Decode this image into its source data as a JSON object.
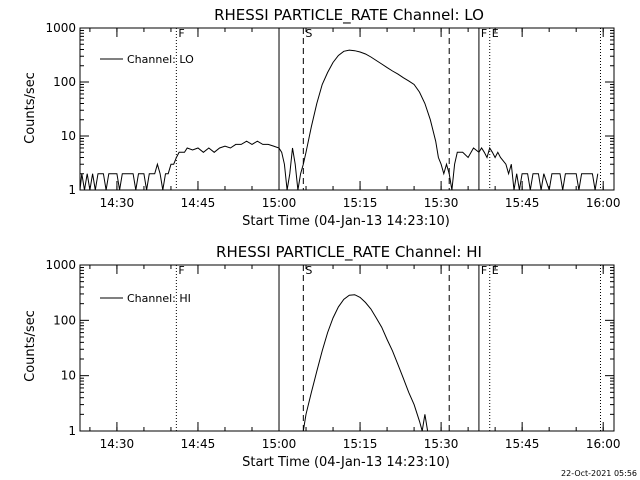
{
  "footer_timestamp": "22-Oct-2021 05:56",
  "chart_data": [
    {
      "type": "line",
      "title": "RHESSI PARTICLE_RATE Channel: LO",
      "xlabel": "Start Time (04-Jan-13 14:23:10)",
      "ylabel": "Counts/sec",
      "y_scale": "log",
      "xlim": [
        "14:23:10",
        "16:02:00"
      ],
      "ylim": [
        1,
        1000
      ],
      "x_ticks": [
        "14:30",
        "14:45",
        "15:00",
        "15:15",
        "15:30",
        "15:45",
        "16:00"
      ],
      "y_ticks": [
        "1",
        "10",
        "100",
        "1000"
      ],
      "legend": {
        "label": "Channel: LO",
        "position": "top-left"
      },
      "markers": [
        {
          "time": "14:41:00",
          "style": "dotted",
          "label": "F"
        },
        {
          "time": "15:00:00",
          "style": "solid",
          "label": ""
        },
        {
          "time": "15:04:30",
          "style": "dashed",
          "label": "S"
        },
        {
          "time": "15:31:30",
          "style": "dashed",
          "label": ""
        },
        {
          "time": "15:37:00",
          "style": "solid",
          "label": "F"
        },
        {
          "time": "15:39:00",
          "style": "dotted",
          "label": "E"
        },
        {
          "time": "15:59:30",
          "style": "dotted",
          "label": ""
        }
      ],
      "series": [
        {
          "name": "Channel: LO",
          "points": [
            [
              "14:23:10",
              1
            ],
            [
              "14:23:30",
              2
            ],
            [
              "14:24:00",
              1
            ],
            [
              "14:24:30",
              2
            ],
            [
              "14:25:00",
              1
            ],
            [
              "14:25:30",
              2
            ],
            [
              "14:26:00",
              1
            ],
            [
              "14:26:30",
              2
            ],
            [
              "14:27:30",
              2
            ],
            [
              "14:28:00",
              1
            ],
            [
              "14:28:30",
              2
            ],
            [
              "14:30:00",
              2
            ],
            [
              "14:30:30",
              1
            ],
            [
              "14:31:00",
              2
            ],
            [
              "14:33:00",
              2
            ],
            [
              "14:33:30",
              1
            ],
            [
              "14:34:00",
              2
            ],
            [
              "14:35:00",
              2
            ],
            [
              "14:35:30",
              1
            ],
            [
              "14:36:00",
              2
            ],
            [
              "14:37:00",
              2
            ],
            [
              "14:37:30",
              3
            ],
            [
              "14:38:00",
              2
            ],
            [
              "14:38:30",
              1
            ],
            [
              "14:39:00",
              2
            ],
            [
              "14:39:30",
              2
            ],
            [
              "14:40:00",
              3
            ],
            [
              "14:40:30",
              3
            ],
            [
              "14:41:00",
              4
            ],
            [
              "14:41:30",
              5
            ],
            [
              "14:42:30",
              5
            ],
            [
              "14:43:00",
              6
            ],
            [
              "14:44:00",
              5.5
            ],
            [
              "14:45:00",
              6
            ],
            [
              "14:46:00",
              5
            ],
            [
              "14:47:00",
              6
            ],
            [
              "14:48:00",
              5
            ],
            [
              "14:49:00",
              6
            ],
            [
              "14:50:00",
              6.5
            ],
            [
              "14:51:00",
              6
            ],
            [
              "14:52:00",
              7
            ],
            [
              "14:53:00",
              7
            ],
            [
              "14:54:00",
              8
            ],
            [
              "14:55:00",
              7
            ],
            [
              "14:56:00",
              8
            ],
            [
              "14:57:00",
              7
            ],
            [
              "14:58:00",
              7
            ],
            [
              "14:59:00",
              6.5
            ],
            [
              "15:00:00",
              6
            ],
            [
              "15:00:30",
              5
            ],
            [
              "15:01:00",
              3
            ],
            [
              "15:01:30",
              1
            ],
            [
              "15:02:00",
              2
            ],
            [
              "15:02:30",
              6
            ],
            [
              "15:03:00",
              3
            ],
            [
              "15:03:30",
              1
            ],
            [
              "15:04:00",
              2
            ],
            [
              "15:04:30",
              3
            ],
            [
              "15:05:00",
              5
            ],
            [
              "15:06:00",
              15
            ],
            [
              "15:07:00",
              40
            ],
            [
              "15:08:00",
              90
            ],
            [
              "15:09:00",
              150
            ],
            [
              "15:10:00",
              230
            ],
            [
              "15:11:00",
              310
            ],
            [
              "15:12:00",
              370
            ],
            [
              "15:13:00",
              390
            ],
            [
              "15:14:00",
              380
            ],
            [
              "15:15:00",
              360
            ],
            [
              "15:16:00",
              330
            ],
            [
              "15:17:00",
              290
            ],
            [
              "15:18:00",
              250
            ],
            [
              "15:19:00",
              215
            ],
            [
              "15:20:00",
              185
            ],
            [
              "15:21:00",
              160
            ],
            [
              "15:22:00",
              140
            ],
            [
              "15:23:00",
              120
            ],
            [
              "15:24:00",
              105
            ],
            [
              "15:25:00",
              90
            ],
            [
              "15:26:00",
              65
            ],
            [
              "15:27:00",
              40
            ],
            [
              "15:28:00",
              20
            ],
            [
              "15:29:00",
              8
            ],
            [
              "15:29:30",
              4
            ],
            [
              "15:30:00",
              3
            ],
            [
              "15:30:30",
              2
            ],
            [
              "15:31:00",
              3
            ],
            [
              "15:31:30",
              2
            ],
            [
              "15:32:00",
              1
            ],
            [
              "15:32:30",
              3
            ],
            [
              "15:33:00",
              5
            ],
            [
              "15:34:00",
              5
            ],
            [
              "15:35:00",
              4
            ],
            [
              "15:36:00",
              6
            ],
            [
              "15:37:00",
              5
            ],
            [
              "15:37:30",
              6
            ],
            [
              "15:38:00",
              5
            ],
            [
              "15:38:30",
              4
            ],
            [
              "15:39:00",
              6
            ],
            [
              "15:39:30",
              5
            ],
            [
              "15:40:00",
              4
            ],
            [
              "15:40:30",
              5
            ],
            [
              "15:41:00",
              4
            ],
            [
              "15:42:00",
              3
            ],
            [
              "15:42:30",
              2
            ],
            [
              "15:43:00",
              3
            ],
            [
              "15:43:30",
              1
            ],
            [
              "15:44:00",
              2
            ],
            [
              "15:44:30",
              1
            ],
            [
              "15:45:00",
              2
            ],
            [
              "15:46:00",
              2
            ],
            [
              "15:46:30",
              1
            ],
            [
              "15:47:00",
              2
            ],
            [
              "15:48:00",
              2
            ],
            [
              "15:48:30",
              1
            ],
            [
              "15:49:00",
              2
            ],
            [
              "15:50:00",
              1
            ],
            [
              "15:50:30",
              2
            ],
            [
              "15:52:00",
              2
            ],
            [
              "15:52:30",
              1
            ],
            [
              "15:53:00",
              2
            ],
            [
              "15:55:00",
              2
            ],
            [
              "15:55:30",
              1
            ],
            [
              "15:56:00",
              2
            ],
            [
              "15:58:00",
              2
            ],
            [
              "15:58:30",
              1
            ],
            [
              "15:59:00",
              2
            ]
          ]
        }
      ]
    },
    {
      "type": "line",
      "title": "RHESSI PARTICLE_RATE Channel: HI",
      "xlabel": "Start Time (04-Jan-13 14:23:10)",
      "ylabel": "Counts/sec",
      "y_scale": "log",
      "xlim": [
        "14:23:10",
        "16:02:00"
      ],
      "ylim": [
        1,
        1000
      ],
      "x_ticks": [
        "14:30",
        "14:45",
        "15:00",
        "15:15",
        "15:30",
        "15:45",
        "16:00"
      ],
      "y_ticks": [
        "1",
        "10",
        "100",
        "1000"
      ],
      "legend": {
        "label": "Channel: HI",
        "position": "top-left"
      },
      "markers": [
        {
          "time": "14:41:00",
          "style": "dotted",
          "label": "F"
        },
        {
          "time": "15:00:00",
          "style": "solid",
          "label": ""
        },
        {
          "time": "15:04:30",
          "style": "dashed",
          "label": "S"
        },
        {
          "time": "15:31:30",
          "style": "dashed",
          "label": ""
        },
        {
          "time": "15:37:00",
          "style": "solid",
          "label": "F"
        },
        {
          "time": "15:39:00",
          "style": "dotted",
          "label": "E"
        },
        {
          "time": "15:59:30",
          "style": "dotted",
          "label": ""
        }
      ],
      "series": [
        {
          "name": "Channel: HI",
          "points": [
            [
              "15:04:30",
              1
            ],
            [
              "15:05:00",
              2
            ],
            [
              "15:06:00",
              5
            ],
            [
              "15:07:00",
              12
            ],
            [
              "15:08:00",
              28
            ],
            [
              "15:09:00",
              60
            ],
            [
              "15:10:00",
              110
            ],
            [
              "15:11:00",
              175
            ],
            [
              "15:12:00",
              240
            ],
            [
              "15:13:00",
              285
            ],
            [
              "15:14:00",
              290
            ],
            [
              "15:15:00",
              260
            ],
            [
              "15:16:00",
              210
            ],
            [
              "15:17:00",
              160
            ],
            [
              "15:18:00",
              110
            ],
            [
              "15:19:00",
              75
            ],
            [
              "15:20:00",
              45
            ],
            [
              "15:21:00",
              28
            ],
            [
              "15:22:00",
              16
            ],
            [
              "15:23:00",
              9
            ],
            [
              "15:24:00",
              5
            ],
            [
              "15:25:00",
              3
            ],
            [
              "15:26:00",
              1.5
            ],
            [
              "15:26:30",
              1
            ],
            [
              "15:27:00",
              2
            ],
            [
              "15:27:30",
              1
            ]
          ]
        }
      ]
    }
  ]
}
